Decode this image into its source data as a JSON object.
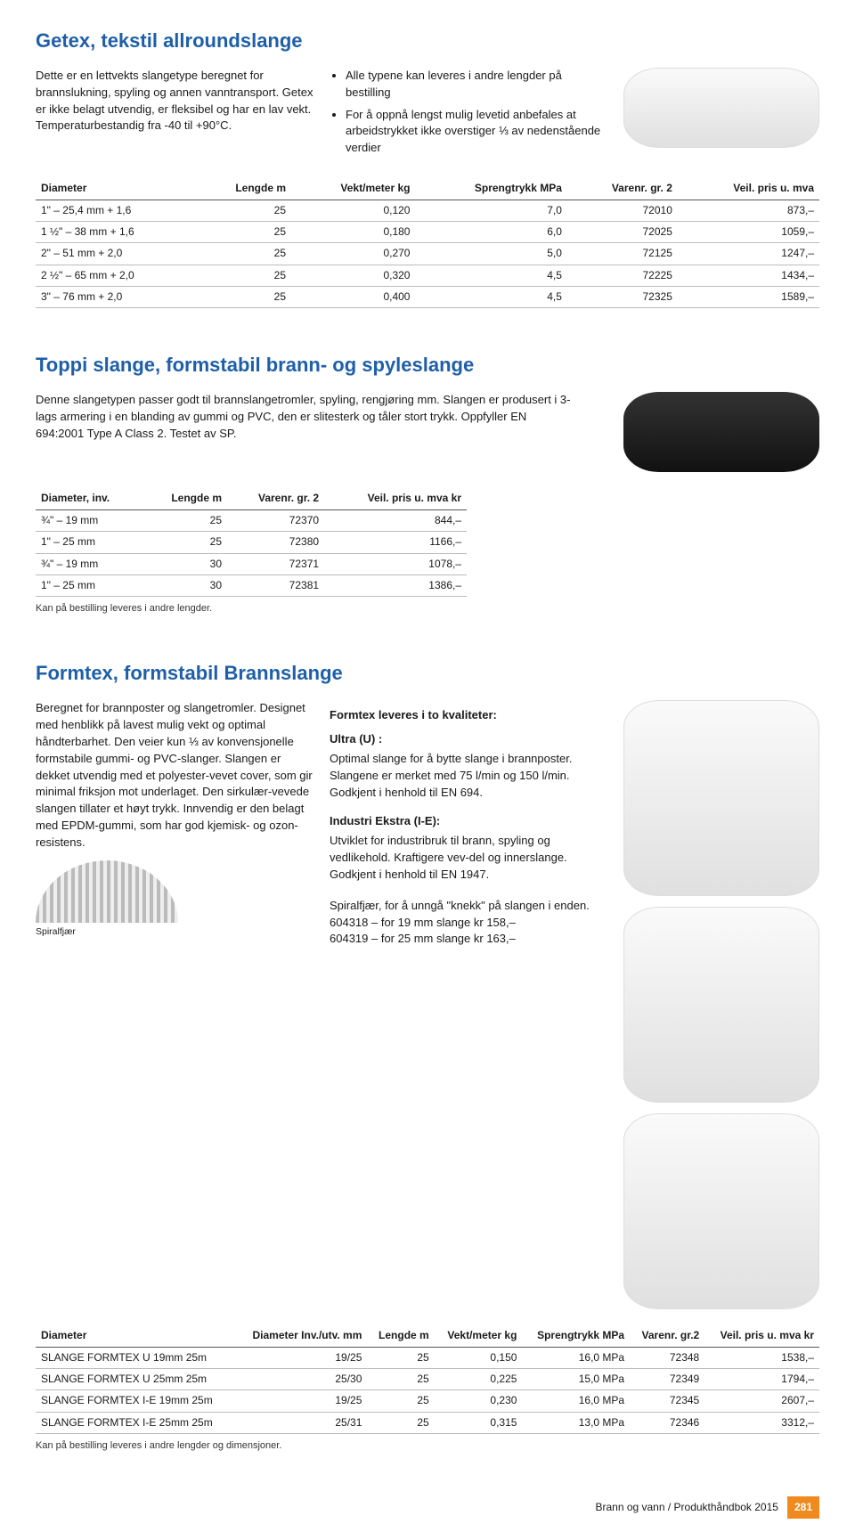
{
  "section1": {
    "title": "Getex, tekstil allroundslange",
    "col1": "Dette er en lettvekts slangetype beregnet for brannslukning, spyling og annen vanntransport. Getex er ikke belagt utvendig, er  fleksibel og har en lav vekt. Temperaturbestandig fra -40 til +90°C.",
    "bullets": [
      "Alle typene kan leveres i andre lengder på bestilling",
      "For å oppnå lengst mulig levetid anbefales at arbeidstrykket ikke overstiger ⅓ av nedenstående verdier"
    ],
    "table": {
      "columns": [
        "Diameter",
        "Lengde m",
        "Vekt/meter kg",
        "Sprengtrykk MPa",
        "Varenr. gr. 2",
        "Veil. pris u. mva"
      ],
      "rows": [
        [
          "1\" – 25,4 mm + 1,6",
          "25",
          "0,120",
          "7,0",
          "72010",
          "873,–"
        ],
        [
          "1 ½\" – 38 mm + 1,6",
          "25",
          "0,180",
          "6,0",
          "72025",
          "1059,–"
        ],
        [
          "2\" – 51 mm + 2,0",
          "25",
          "0,270",
          "5,0",
          "72125",
          "1247,–"
        ],
        [
          "2 ½\" – 65 mm + 2,0",
          "25",
          "0,320",
          "4,5",
          "72225",
          "1434,–"
        ],
        [
          "3\" – 76 mm + 2,0",
          "25",
          "0,400",
          "4,5",
          "72325",
          "1589,–"
        ]
      ]
    }
  },
  "section2": {
    "title": "Toppi slange, formstabil brann- og spyleslange",
    "para": "Denne slangetypen passer godt til brannslangetromler, spyling, rengjøring mm. Slangen er produsert i 3-lags armering i en blanding av gummi og PVC, den er slitesterk og tåler stort trykk. Oppfyller EN 694:2001 Type A Class 2. Testet av SP.",
    "table": {
      "columns": [
        "Diameter, inv.",
        "Lengde m",
        "Varenr. gr. 2",
        "Veil. pris u. mva kr"
      ],
      "rows": [
        [
          "¾\" – 19 mm",
          "25",
          "72370",
          "844,–"
        ],
        [
          "1\" – 25 mm",
          "25",
          "72380",
          "1166,–"
        ],
        [
          "¾\" – 19 mm",
          "30",
          "72371",
          "1078,–"
        ],
        [
          "1\" – 25 mm",
          "30",
          "72381",
          "1386,–"
        ]
      ]
    },
    "note": "Kan på bestilling leveres i andre lengder."
  },
  "section3": {
    "title": "Formtex, formstabil Brannslange",
    "col1": "Beregnet for brannposter og slangetromler. Designet med henblikk på lavest mulig vekt og optimal håndterbarhet. Den veier kun ⅓ av konvensjonelle formstabile gummi- og PVC-slanger. Slangen er dekket utvendig med et polyester-vevet cover, som gir minimal friksjon mot underlaget. Den sirkulær-vevede slangen tillater et høyt trykk. Innvendig er den belagt med EPDM-gummi, som har god kjemisk- og ozon-resistens.",
    "sub1_title": "Formtex leveres i to kvaliteter:",
    "sub1a_title": "Ultra (U) :",
    "sub1a_text": "Optimal slange for å bytte slange i brannposter. Slangene er merket med 75 l/min og 150 l/min. Godkjent i henhold til EN 694.",
    "sub1b_title": "Industri Ekstra (I-E):",
    "sub1b_text": "Utviklet for industribruk til brann, spyling og vedlikehold. Kraftigere vev-del og innerslange. Godkjent i henhold til EN 1947.",
    "spiral_intro": "Spiralfjær, for å unngå \"knekk\" på slangen i enden.",
    "spiral_lines": [
      "604318 – for 19 mm slange kr 158,–",
      "604319 – for 25 mm slange kr 163,–"
    ],
    "spiral_caption": "Spiralfjær",
    "table": {
      "columns": [
        "Diameter",
        "Diameter Inv./utv. mm",
        "Lengde m",
        "Vekt/meter kg",
        "Sprengtrykk MPa",
        "Varenr. gr.2",
        "Veil. pris u. mva kr"
      ],
      "rows": [
        [
          "SLANGE FORMTEX U 19mm 25m",
          "19/25",
          "25",
          "0,150",
          "16,0 MPa",
          "72348",
          "1538,–"
        ],
        [
          "SLANGE FORMTEX U 25mm 25m",
          "25/30",
          "25",
          "0,225",
          "15,0 MPa",
          "72349",
          "1794,–"
        ],
        [
          "SLANGE FORMTEX I-E 19mm 25m",
          "19/25",
          "25",
          "0,230",
          "16,0 MPa",
          "72345",
          "2607,–"
        ],
        [
          "SLANGE FORMTEX I-E 25mm 25m",
          "25/31",
          "25",
          "0,315",
          "13,0 MPa",
          "72346",
          "3312,–"
        ]
      ]
    },
    "note": "Kan på bestilling leveres i andre lengder og dimensjoner."
  },
  "footer": {
    "text": "Brann og vann  / Produkthåndbok 2015",
    "page": "281"
  }
}
